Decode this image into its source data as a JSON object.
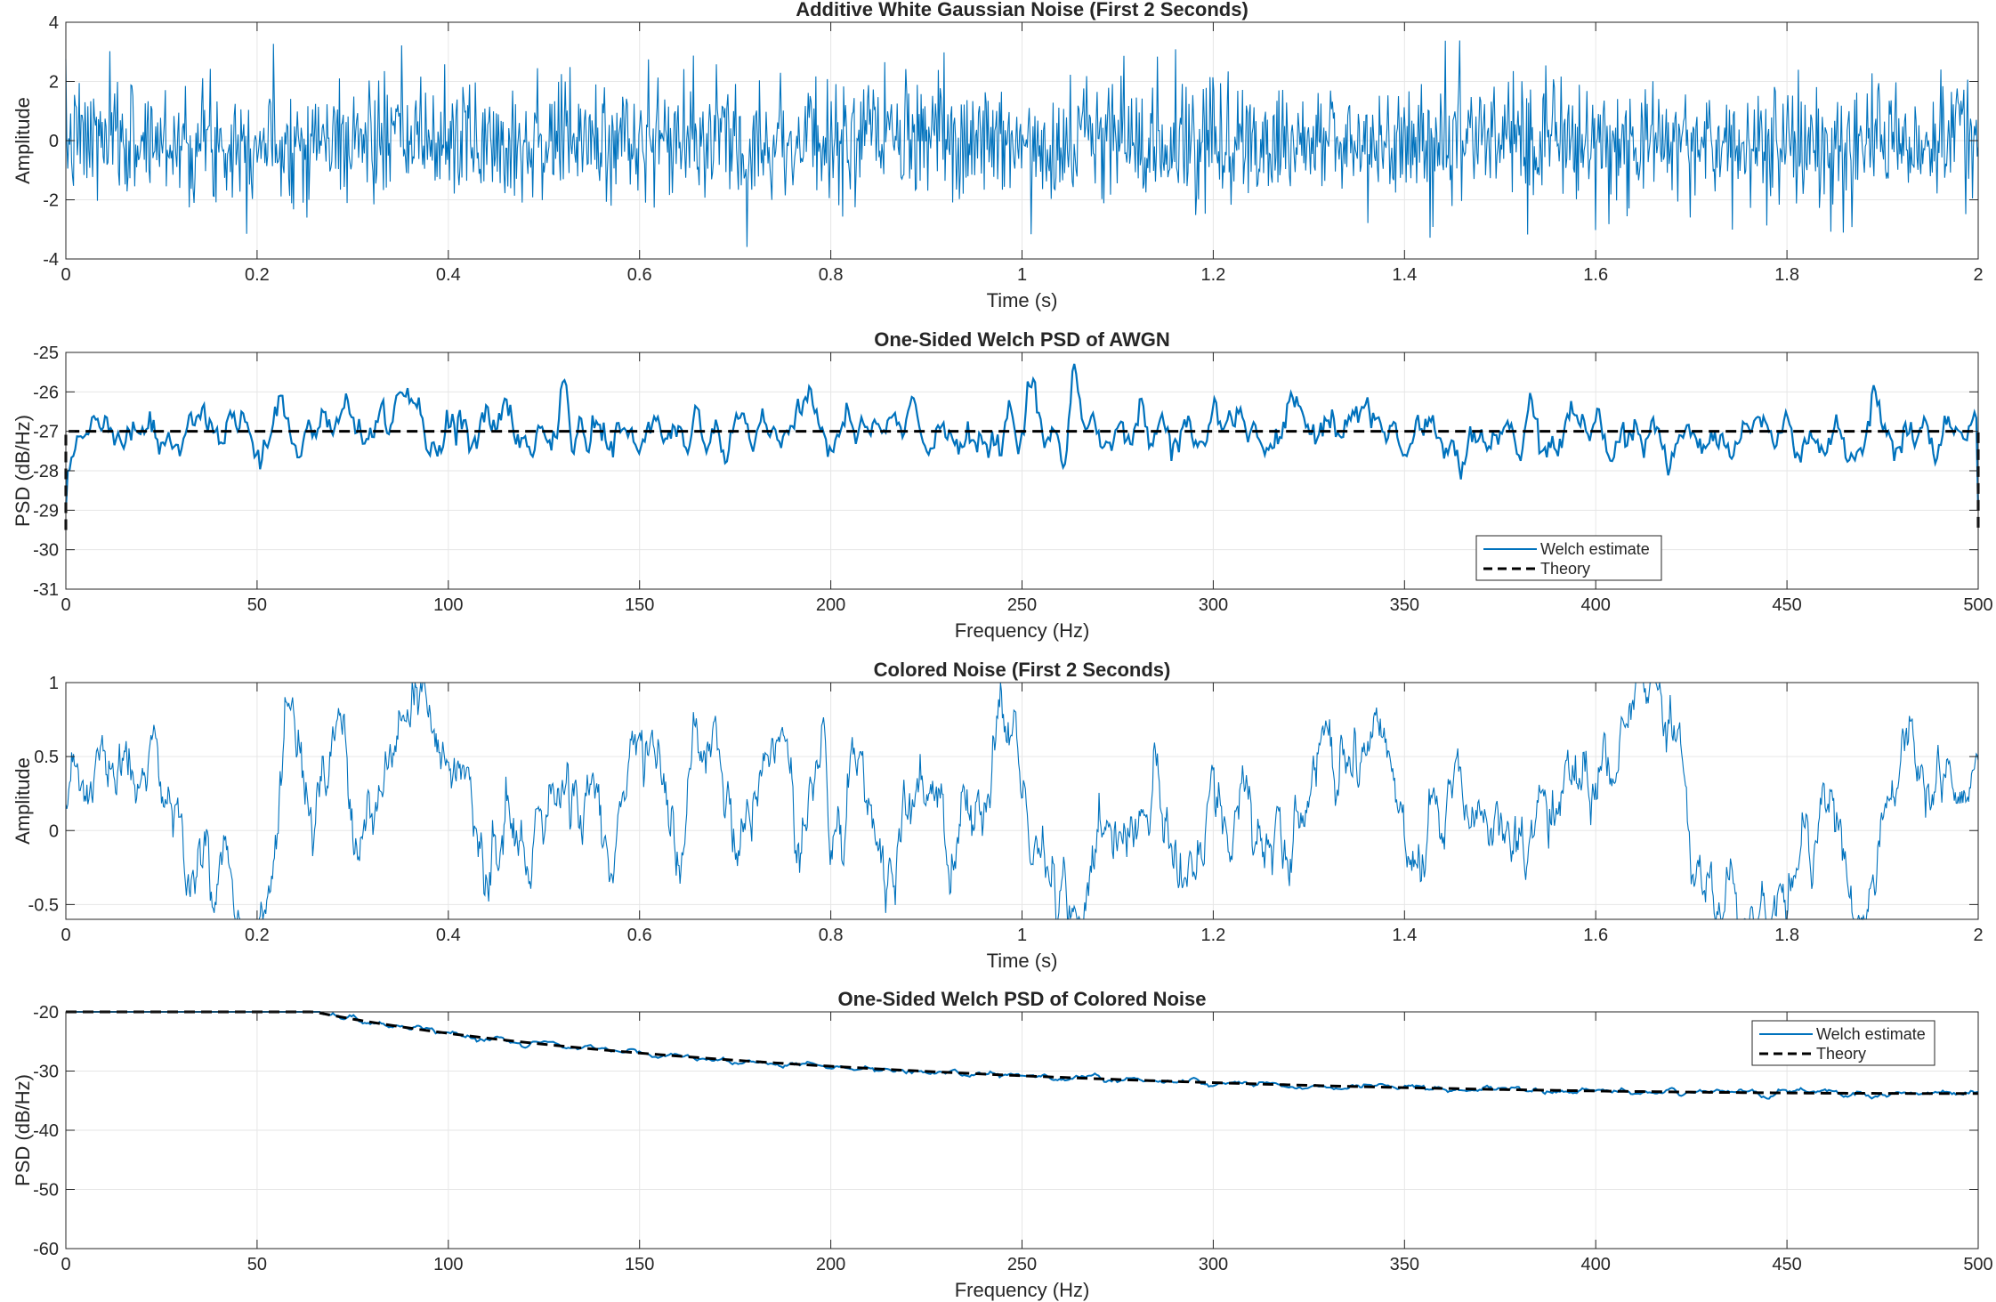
{
  "colors": {
    "signal": "#0072BD",
    "theory": "#000000",
    "grid": "#e6e6e6",
    "axis": "#262626"
  },
  "chart_data": [
    {
      "type": "line",
      "title": "Additive White Gaussian Noise (First 2 Seconds)",
      "xlabel": "Time (s)",
      "ylabel": "Amplitude",
      "xlim": [
        0,
        2
      ],
      "ylim": [
        -4,
        4
      ],
      "xticks": [
        0,
        0.2,
        0.4,
        0.6,
        0.8,
        1,
        1.2,
        1.4,
        1.6,
        1.8,
        2
      ],
      "yticks": [
        -4,
        -2,
        0,
        2,
        4
      ],
      "grid": true,
      "series": [
        {
          "kind": "white-noise",
          "x_range": [
            0,
            2
          ],
          "n_points": 2000,
          "mean": 0,
          "std": 1.0,
          "seed": 7,
          "color": "#0072BD"
        }
      ]
    },
    {
      "type": "line",
      "title": "One-Sided Welch PSD of AWGN",
      "xlabel": "Frequency (Hz)",
      "ylabel": "PSD (dB/Hz)",
      "xlim": [
        0,
        500
      ],
      "ylim": [
        -31,
        -25
      ],
      "xticks": [
        0,
        50,
        100,
        150,
        200,
        250,
        300,
        350,
        400,
        450,
        500
      ],
      "yticks": [
        -31,
        -30,
        -29,
        -28,
        -27,
        -26,
        -25
      ],
      "grid": true,
      "legend": {
        "position": "bottom-right",
        "entries": [
          "Welch estimate",
          "Theory"
        ]
      },
      "series": [
        {
          "name": "Welch estimate",
          "kind": "psd-estimate",
          "x_range": [
            0,
            500
          ],
          "n_points": 1025,
          "base": -27.0,
          "slope": 0,
          "std": 0.45,
          "edge_drop": 2.5,
          "seed": 11,
          "color": "#0072BD"
        },
        {
          "name": "Theory",
          "kind": "constant",
          "x_range": [
            0,
            500
          ],
          "value": -27.0,
          "edge_drop": 2.5,
          "dashed": true,
          "color": "#000000"
        }
      ]
    },
    {
      "type": "line",
      "title": "Colored Noise (First 2 Seconds)",
      "xlabel": "Time (s)",
      "ylabel": "Amplitude",
      "xlim": [
        0,
        2
      ],
      "ylim": [
        -0.6,
        1
      ],
      "xticks": [
        0,
        0.2,
        0.4,
        0.6,
        0.8,
        1,
        1.2,
        1.4,
        1.6,
        1.8,
        2
      ],
      "yticks": [
        -0.5,
        0,
        0.5,
        1
      ],
      "grid": true,
      "series": [
        {
          "kind": "colored-noise",
          "x_range": [
            0,
            2
          ],
          "n_points": 2000,
          "alpha": 0.965,
          "std": 0.2,
          "seed": 23,
          "color": "#0072BD"
        }
      ]
    },
    {
      "type": "line",
      "title": "One-Sided Welch PSD of Colored Noise",
      "xlabel": "Frequency (Hz)",
      "ylabel": "PSD (dB/Hz)",
      "xlim": [
        0,
        500
      ],
      "ylim": [
        -60,
        -20
      ],
      "xticks": [
        0,
        50,
        100,
        150,
        200,
        250,
        300,
        350,
        400,
        450,
        500
      ],
      "yticks": [
        -60,
        -50,
        -40,
        -30,
        -20
      ],
      "grid": true,
      "legend": {
        "position": "top-right",
        "entries": [
          "Welch estimate",
          "Theory"
        ]
      },
      "series": [
        {
          "name": "Welch estimate",
          "kind": "psd-estimate",
          "x_range": [
            0,
            500
          ],
          "n_points": 1025,
          "ar1_alpha": 0.95,
          "base": -1.0,
          "std": 0.35,
          "seed": 31,
          "color": "#0072BD"
        },
        {
          "name": "Theory",
          "kind": "ar1-theory",
          "x_range": [
            0,
            500
          ],
          "ar1_alpha": 0.95,
          "base": -1.0,
          "dashed": true,
          "color": "#000000"
        }
      ]
    }
  ]
}
